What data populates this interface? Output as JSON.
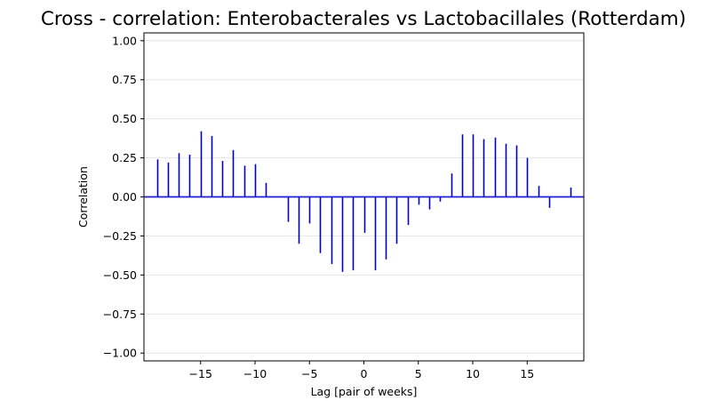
{
  "chart_data": {
    "type": "bar",
    "style": "stem",
    "title": "Cross - correlation: Enterobacterales vs Lactobacillales (Rotterdam)",
    "xlabel": "Lag [pair of weeks]",
    "ylabel": "Correlation",
    "xlim": [
      -20.2,
      20.2
    ],
    "ylim": [
      -1.05,
      1.05
    ],
    "xticks": [
      -15,
      -10,
      -5,
      0,
      5,
      10,
      15
    ],
    "xtick_labels": [
      "−15",
      "−10",
      "−5",
      "0",
      "5",
      "10",
      "15"
    ],
    "yticks": [
      -1.0,
      -0.75,
      -0.5,
      -0.25,
      0.0,
      0.25,
      0.5,
      0.75,
      1.0
    ],
    "ytick_labels": [
      "−1.00",
      "−0.75",
      "−0.50",
      "−0.25",
      "0.00",
      "0.25",
      "0.50",
      "0.75",
      "1.00"
    ],
    "grid": "horizontal",
    "colors": {
      "stems": "#0000cd",
      "baseline": "#1f1fd0",
      "grid": "#e6e6e6"
    },
    "x": [
      -19,
      -18,
      -17,
      -16,
      -15,
      -14,
      -13,
      -12,
      -11,
      -10,
      -9,
      -8,
      -7,
      -6,
      -5,
      -4,
      -3,
      -2,
      -1,
      0,
      1,
      2,
      3,
      4,
      5,
      6,
      7,
      8,
      9,
      10,
      11,
      12,
      13,
      14,
      15,
      16,
      17,
      18,
      19
    ],
    "values": [
      0.24,
      0.22,
      0.28,
      0.27,
      0.42,
      0.39,
      0.23,
      0.3,
      0.2,
      0.21,
      0.09,
      0.0,
      -0.16,
      -0.3,
      -0.17,
      -0.36,
      -0.43,
      -0.48,
      -0.47,
      -0.23,
      -0.47,
      -0.4,
      -0.3,
      -0.18,
      -0.05,
      -0.08,
      -0.03,
      0.15,
      0.4,
      0.4,
      0.37,
      0.38,
      0.34,
      0.33,
      0.25,
      0.07,
      -0.07,
      0.0,
      0.06
    ]
  }
}
